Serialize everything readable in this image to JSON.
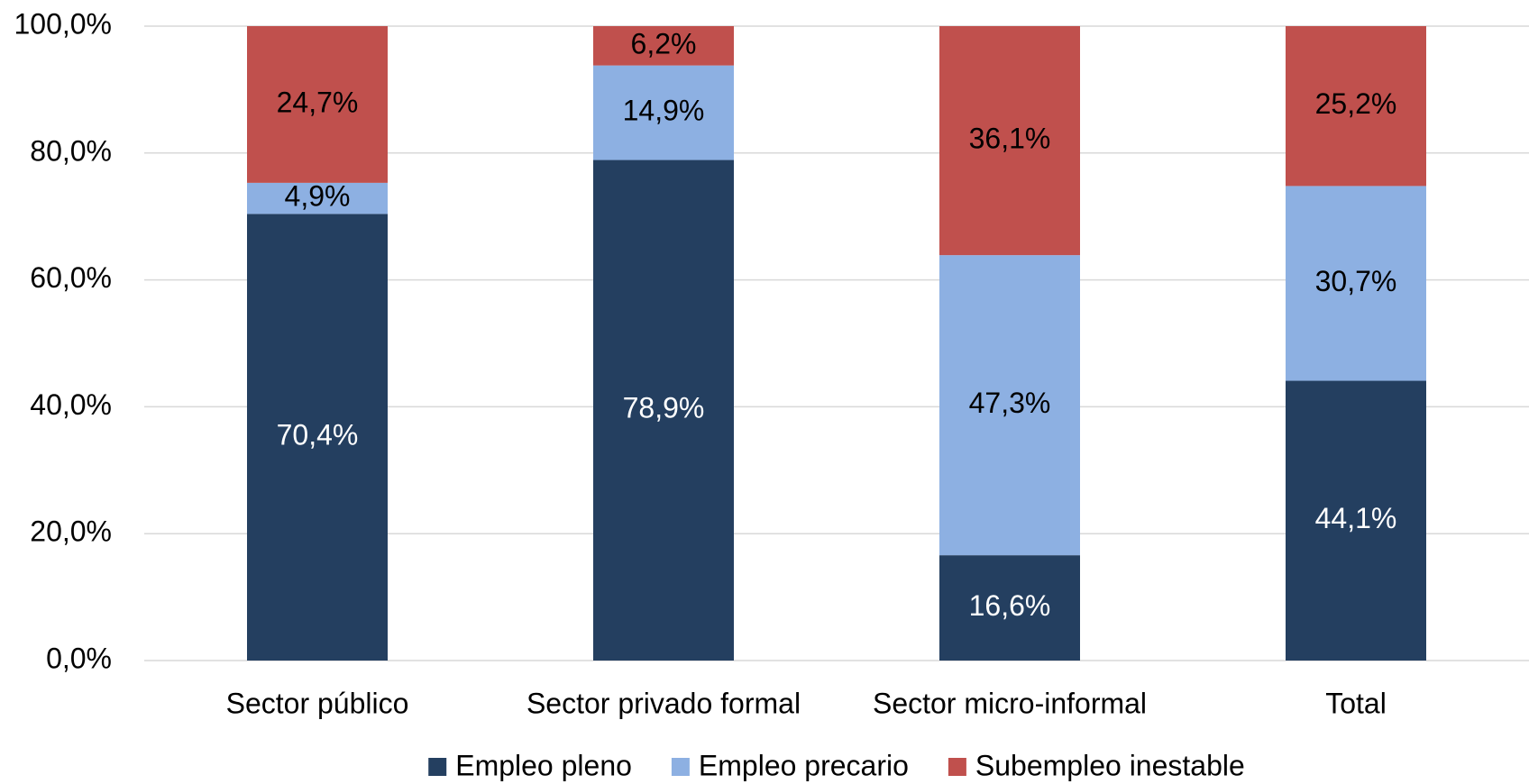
{
  "chart_data": {
    "type": "stacked_bar",
    "categories": [
      "Sector público",
      "Sector privado formal",
      "Sector micro-informal",
      "Total"
    ],
    "series": [
      {
        "name": "Empleo pleno",
        "color": "#243f60",
        "label_color": "#ffffff",
        "values": [
          70.4,
          78.9,
          16.6,
          44.1
        ],
        "value_labels": [
          "70,4%",
          "78,9%",
          "16,6%",
          "44,1%"
        ]
      },
      {
        "name": "Empleo precario",
        "color": "#8db0e2",
        "label_color": "#000000",
        "values": [
          4.9,
          14.9,
          47.3,
          30.7
        ],
        "value_labels": [
          "4,9%",
          "14,9%",
          "47,3%",
          "30,7%"
        ]
      },
      {
        "name": "Subempleo inestable",
        "color": "#c0504d",
        "label_color": "#000000",
        "values": [
          24.7,
          6.2,
          36.1,
          25.2
        ],
        "value_labels": [
          "24,7%",
          "6,2%",
          "36,1%",
          "25,2%"
        ]
      }
    ],
    "ylim": [
      0,
      100
    ],
    "yticks": [
      {
        "value": 0,
        "label": "0,0%"
      },
      {
        "value": 20,
        "label": "20,0%"
      },
      {
        "value": 40,
        "label": "40,0%"
      },
      {
        "value": 60,
        "label": "60,0%"
      },
      {
        "value": 80,
        "label": "80,0%"
      },
      {
        "value": 100,
        "label": "100,0%"
      }
    ],
    "grid": true,
    "legend": "bottom"
  }
}
